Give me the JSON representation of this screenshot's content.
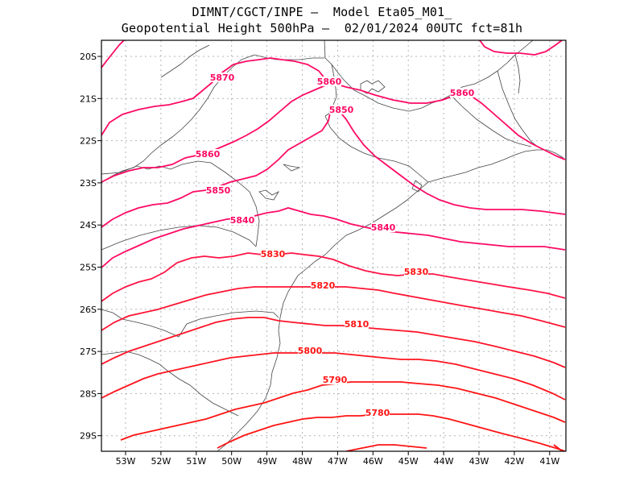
{
  "header": {
    "line1": "DIMNT/CGCT/INPE –  Model Eta05_M01_",
    "line2": "Geopotential Height 500hPa –  02/01/2024 00UTC fct=81h"
  },
  "axes": {
    "lon_ticks": [
      "53W",
      "52W",
      "51W",
      "50W",
      "49W",
      "48W",
      "47W",
      "46W",
      "45W",
      "44W",
      "43W",
      "42W",
      "41W"
    ],
    "lat_ticks": [
      "20S",
      "21S",
      "22S",
      "23S",
      "24S",
      "25S",
      "26S",
      "27S",
      "28S",
      "29S"
    ]
  },
  "colors": {
    "contour_high": "#ff0a64",
    "contour_low": "#ff1414",
    "coast": "#444444",
    "grid": "#b4b4b4"
  },
  "contour_labels": [
    "5870",
    "5860",
    "5860",
    "5850",
    "5860",
    "5850",
    "5840",
    "5840",
    "5830",
    "5830",
    "5820",
    "5810",
    "5800",
    "5790",
    "5780"
  ]
}
